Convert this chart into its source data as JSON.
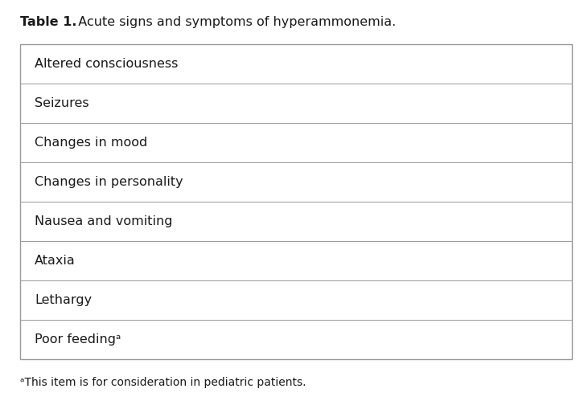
{
  "title_bold": "Table 1.",
  "title_rest": "  Acute signs and symptoms of hyperammonemia.",
  "rows": [
    "Altered consciousness",
    "Seizures",
    "Changes in mood",
    "Changes in personality",
    "Nausea and vomiting",
    "Ataxia",
    "Lethargy",
    "Poor feedingᵃ"
  ],
  "footnote_super": "ᵃ",
  "footnote_text": "This item is for consideration in pediatric patients.",
  "bg_color": "#ffffff",
  "border_color": "#999999",
  "text_color": "#1a1a1a",
  "title_fontsize": 11.5,
  "row_fontsize": 11.5,
  "footnote_fontsize": 10.0,
  "fig_width": 7.26,
  "fig_height": 5.09,
  "dpi": 100
}
